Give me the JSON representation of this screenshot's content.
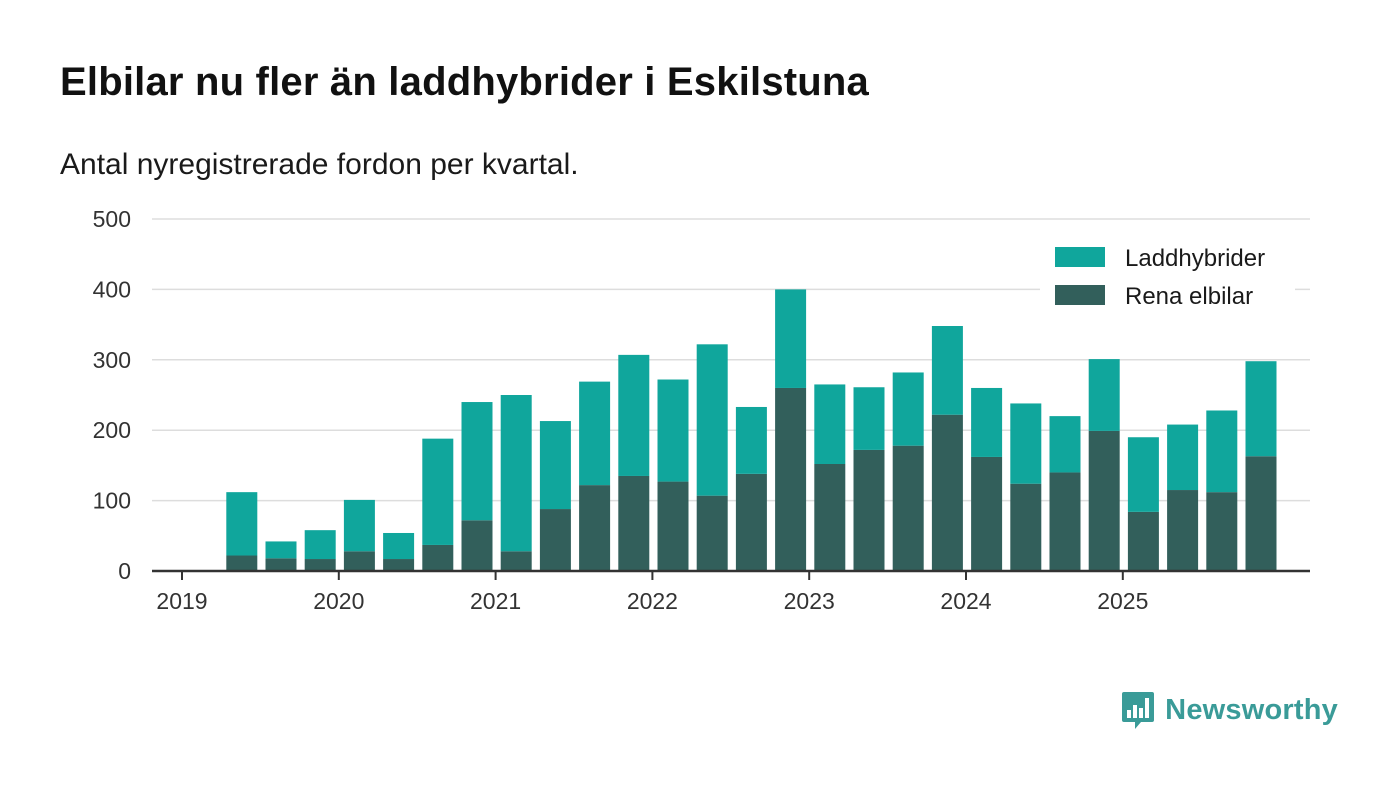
{
  "title": "Elbilar nu fler än laddhybrider i Eskilstuna",
  "subtitle": "Antal nyregistrerade fordon per kvartal.",
  "brand": "Newsworthy",
  "colors": {
    "plugin": "#10a69c",
    "electric": "#325f5b",
    "grid": "#dddddd",
    "axis": "#333333",
    "brand": "#3a9b98"
  },
  "chart_data": {
    "type": "bar",
    "stacked": true,
    "y_ticks": [
      0,
      100,
      200,
      300,
      400,
      500
    ],
    "ylim": [
      0,
      500
    ],
    "x_ticks": [
      "2019",
      "2020",
      "2021",
      "2022",
      "2023",
      "2024",
      "2025"
    ],
    "categories": [
      "2019 Q1",
      "2019 Q2",
      "2019 Q3",
      "2019 Q4",
      "2020 Q1",
      "2020 Q2",
      "2020 Q3",
      "2020 Q4",
      "2021 Q1",
      "2021 Q2",
      "2021 Q3",
      "2021 Q4",
      "2022 Q1",
      "2022 Q2",
      "2022 Q3",
      "2022 Q4",
      "2023 Q1",
      "2023 Q2",
      "2023 Q3",
      "2023 Q4",
      "2024 Q1",
      "2024 Q2",
      "2024 Q3",
      "2024 Q4",
      "2025 Q1",
      "2025 Q2",
      "2025 Q3",
      "2025 Q4"
    ],
    "legend": [
      "Laddhybrider",
      "Rena elbilar"
    ],
    "legend_position": "top-right",
    "series": [
      {
        "name": "Rena elbilar",
        "values": [
          null,
          22,
          18,
          17,
          28,
          17,
          37,
          72,
          28,
          88,
          122,
          135,
          127,
          107,
          138,
          260,
          152,
          172,
          178,
          222,
          162,
          124,
          140,
          199,
          84,
          115,
          112,
          163
        ]
      },
      {
        "name": "Laddhybrider",
        "values": [
          null,
          90,
          24,
          41,
          73,
          37,
          151,
          168,
          222,
          125,
          147,
          172,
          145,
          215,
          95,
          140,
          113,
          89,
          104,
          126,
          98,
          114,
          80,
          102,
          106,
          93,
          116,
          135
        ]
      }
    ]
  }
}
